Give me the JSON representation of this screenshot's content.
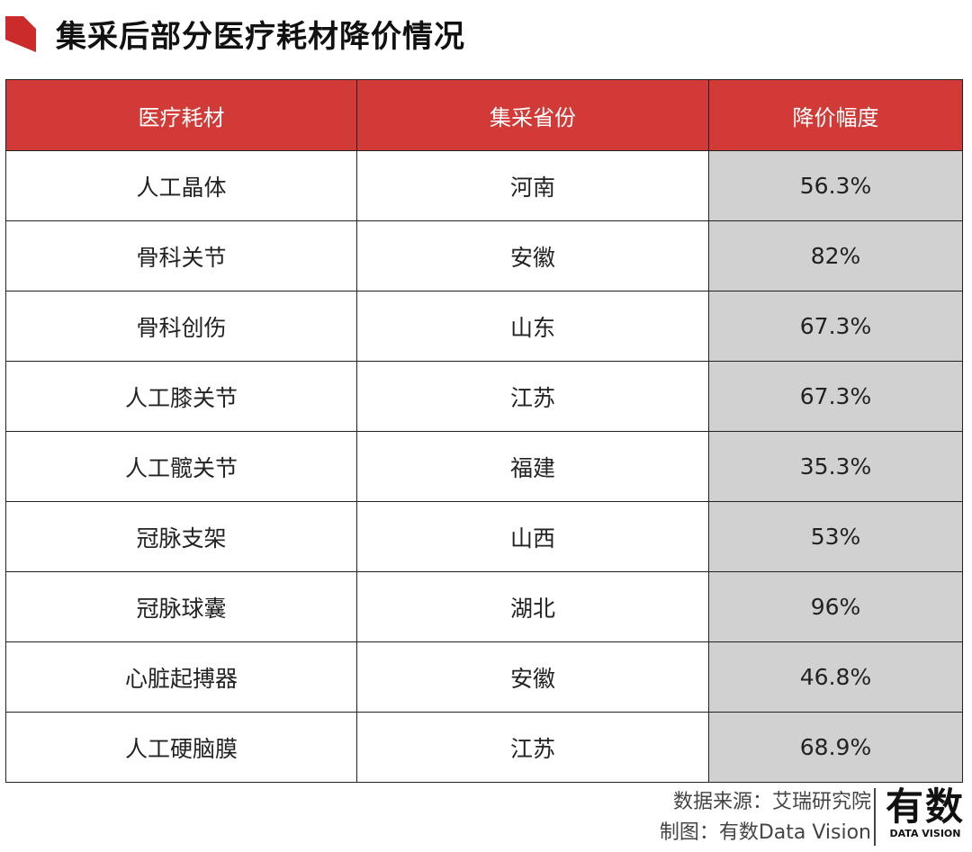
{
  "title": "集采后部分医疗耗材降价情况",
  "chart_data": {
    "type": "table",
    "columns": [
      "医疗耗材",
      "集采省份",
      "降价幅度"
    ],
    "rows": [
      {
        "item": "人工晶体",
        "province": "河南",
        "reduction": "56.3%"
      },
      {
        "item": "骨科关节",
        "province": "安徽",
        "reduction": "82%"
      },
      {
        "item": "骨科创伤",
        "province": "山东",
        "reduction": "67.3%"
      },
      {
        "item": "人工膝关节",
        "province": "江苏",
        "reduction": "67.3%"
      },
      {
        "item": "人工髋关节",
        "province": "福建",
        "reduction": "35.3%"
      },
      {
        "item": "冠脉支架",
        "province": "山西",
        "reduction": "53%"
      },
      {
        "item": "冠脉球囊",
        "province": "湖北",
        "reduction": "96%"
      },
      {
        "item": "心脏起搏器",
        "province": "安徽",
        "reduction": "46.8%"
      },
      {
        "item": "人工硬脑膜",
        "province": "江苏",
        "reduction": "68.9%"
      }
    ]
  },
  "footer": {
    "source": "数据来源：艾瑞研究院",
    "maker": "制图：有数Data Vision"
  },
  "brand": {
    "cn": "有数",
    "en": "DATA VISION"
  },
  "colors": {
    "header_bg": "#d13a36",
    "highlight_col_bg": "#d1d1d1",
    "title_mark": "#cc2b2b"
  }
}
